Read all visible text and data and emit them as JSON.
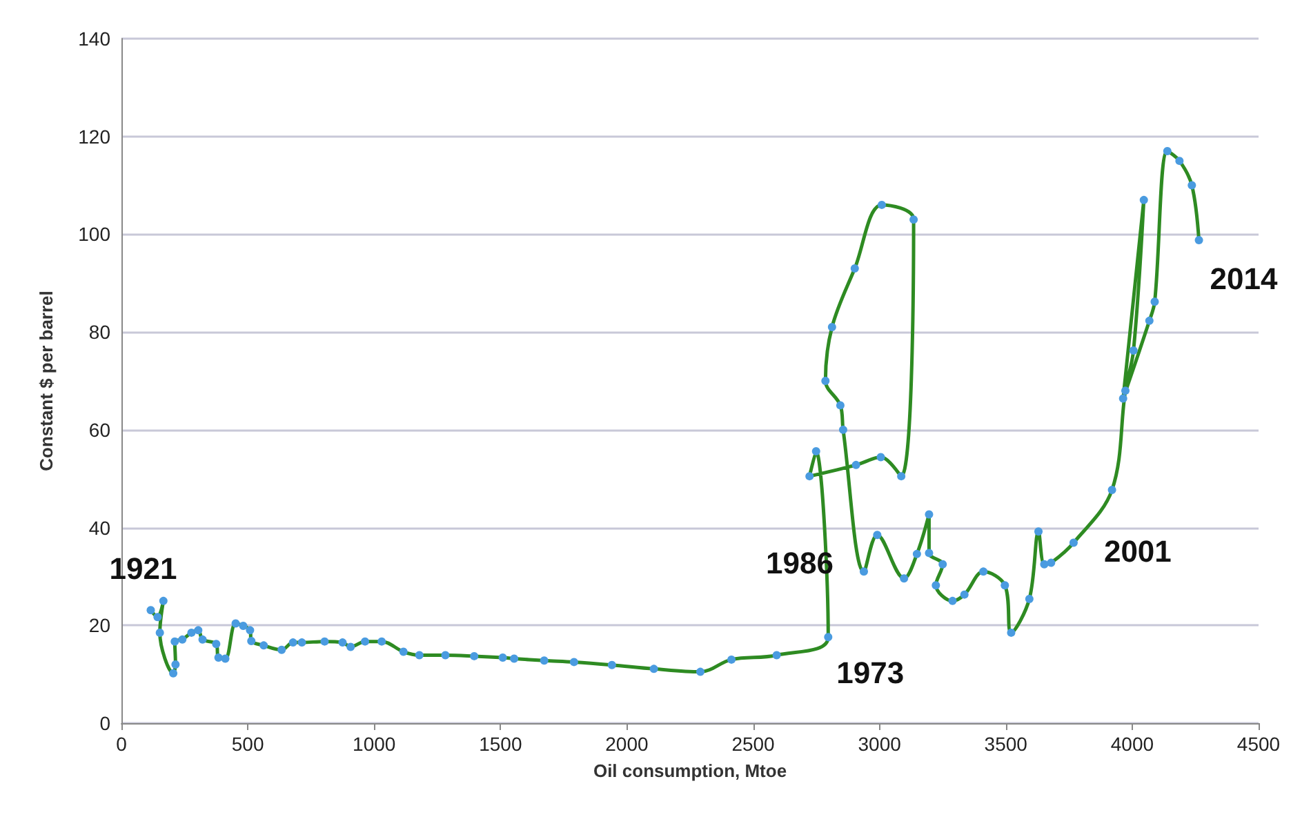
{
  "chart_data": {
    "type": "line",
    "xlabel": "Oil consumption, Mtoe",
    "ylabel": "Constant $ per barrel",
    "xlim": [
      0,
      4500
    ],
    "xticks": [
      0,
      500,
      1000,
      1500,
      2000,
      2500,
      3000,
      3500,
      4000,
      4500
    ],
    "ylim": [
      0,
      140
    ],
    "yticks": [
      0,
      20,
      40,
      60,
      80,
      100,
      120,
      140
    ],
    "grid": "y",
    "marker": "circle",
    "line_style": "solid",
    "series": [
      {
        "color": "#2e8b22",
        "x": [
          116,
          143,
          166,
          152,
          205,
          214,
          211,
          241,
          277,
          304,
          321,
          375,
          384,
          411,
          452,
          482,
          509,
          514,
          563,
          634,
          679,
          714,
          804,
          875,
          907,
          964,
          1030,
          1116,
          1179,
          1282,
          1396,
          1509,
          1554,
          1673,
          1791,
          1941,
          2107,
          2291,
          2414,
          2593,
          2797,
          2749,
          2723,
          2907,
          3005,
          3086,
          3135,
          3009,
          2902,
          2812,
          2786,
          2845,
          2856,
          2938,
          2991,
          3097,
          3148,
          3196,
          3196,
          3250,
          3223,
          3289,
          3336,
          3411,
          3496,
          3521,
          3593,
          3629,
          3652,
          3679,
          3768,
          3920,
          3973,
          4005,
          4046,
          3964,
          4068,
          4089,
          4139,
          4187,
          4236,
          4264
        ],
        "values": [
          23.1,
          21.7,
          25,
          18.5,
          10.2,
          12,
          16.7,
          17.1,
          18.5,
          19,
          17.1,
          16.2,
          13.4,
          13.2,
          20.4,
          19.9,
          19,
          16.8,
          15.9,
          15,
          16.5,
          16.5,
          16.7,
          16.5,
          15.6,
          16.7,
          16.7,
          14.6,
          13.9,
          13.9,
          13.7,
          13.4,
          13.2,
          12.8,
          12.5,
          11.9,
          11.1,
          10.5,
          13,
          13.9,
          17.6,
          55.6,
          50.5,
          52.8,
          54.4,
          50.5,
          103,
          106,
          93,
          81,
          70,
          65,
          60,
          31,
          38.5,
          29.6,
          34.6,
          42.7,
          34.8,
          32.5,
          28.2,
          25,
          26.3,
          31,
          28.2,
          18.5,
          25.4,
          39.2,
          32.5,
          32.8,
          36.9,
          47.7,
          68,
          76.2,
          107,
          66.4,
          82.3,
          86.2,
          117,
          115,
          110,
          98.8
        ]
      }
    ],
    "annotations": [
      {
        "text": "1921",
        "x": 116,
        "y": 23.1
      },
      {
        "text": "1973",
        "x": 2797,
        "y": 17.6
      },
      {
        "text": "1986",
        "x": 2938,
        "y": 31
      },
      {
        "text": "2001",
        "x": 3768,
        "y": 36.9
      },
      {
        "text": "2014",
        "x": 4264,
        "y": 98.8
      }
    ]
  }
}
